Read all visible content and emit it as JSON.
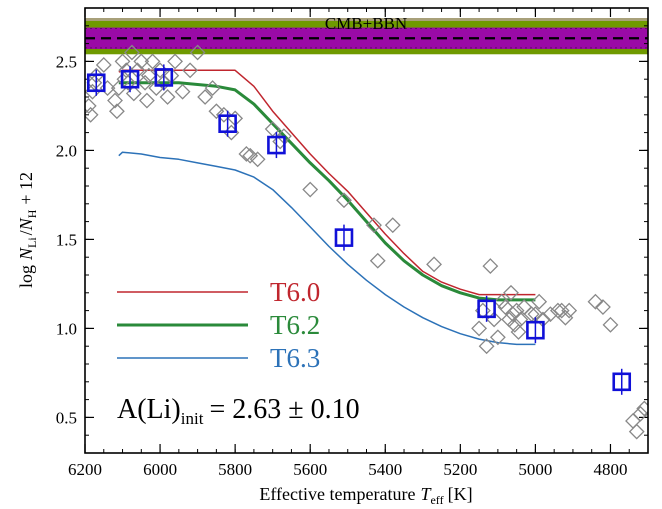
{
  "chart_data": {
    "type": "line",
    "xlabel_main": "Effective temperature",
    "xlabel_sym": "T",
    "xlabel_sub": "eff",
    "xlabel_unit": "[K]",
    "ylabel_log": "log",
    "ylabel_n": "N",
    "ylabel_li": "Li",
    "ylabel_h": "H",
    "ylabel_tail": "+ 12",
    "xlim": [
      6200,
      4700
    ],
    "ylim": [
      0.3,
      2.8
    ],
    "xticks": [
      6200,
      6000,
      5800,
      5600,
      5400,
      5200,
      5000,
      4800
    ],
    "yticks": [
      0.5,
      1.0,
      1.5,
      2.0,
      2.5
    ],
    "band": {
      "label": "CMB+BBN",
      "outer_range": [
        2.54,
        2.73
      ],
      "inner_range": [
        2.57,
        2.69
      ],
      "center": 2.63,
      "outer_color": "#6f9a00",
      "inner_color": "#9a0aa6",
      "top_line_color": "#a8a07a"
    },
    "annotation": {
      "main": "A(Li)",
      "sub": "init",
      "value": "= 2.63 ± 0.10"
    },
    "series": [
      {
        "name": "T6.0",
        "color": "#c0262e",
        "width": 1.5,
        "x": [
          6110,
          6100,
          6050,
          6000,
          5950,
          5900,
          5850,
          5800,
          5750,
          5700,
          5650,
          5600,
          5550,
          5500,
          5450,
          5400,
          5350,
          5300,
          5250,
          5200,
          5150,
          5100,
          5050,
          5000
        ],
        "y": [
          2.44,
          2.45,
          2.45,
          2.45,
          2.45,
          2.45,
          2.45,
          2.45,
          2.36,
          2.22,
          2.1,
          1.98,
          1.87,
          1.77,
          1.65,
          1.53,
          1.42,
          1.32,
          1.26,
          1.22,
          1.19,
          1.19,
          1.19,
          1.19
        ]
      },
      {
        "name": "T6.2",
        "color": "#2a8a3a",
        "width": 3,
        "x": [
          6110,
          6100,
          6050,
          6000,
          5950,
          5900,
          5850,
          5800,
          5750,
          5700,
          5650,
          5600,
          5550,
          5500,
          5450,
          5400,
          5350,
          5300,
          5250,
          5200,
          5150,
          5100,
          5050,
          5000
        ],
        "y": [
          2.38,
          2.38,
          2.38,
          2.38,
          2.38,
          2.37,
          2.36,
          2.34,
          2.26,
          2.15,
          2.04,
          1.93,
          1.83,
          1.72,
          1.6,
          1.48,
          1.38,
          1.3,
          1.24,
          1.2,
          1.17,
          1.16,
          1.16,
          1.16
        ]
      },
      {
        "name": "T6.3",
        "color": "#2c72b8",
        "width": 1.5,
        "x": [
          6110,
          6100,
          6050,
          6000,
          5950,
          5900,
          5850,
          5800,
          5750,
          5700,
          5650,
          5600,
          5550,
          5500,
          5450,
          5400,
          5350,
          5300,
          5250,
          5200,
          5150,
          5100,
          5050,
          5000
        ],
        "y": [
          1.97,
          1.99,
          1.98,
          1.96,
          1.95,
          1.93,
          1.91,
          1.89,
          1.85,
          1.78,
          1.68,
          1.57,
          1.46,
          1.36,
          1.27,
          1.19,
          1.12,
          1.06,
          1.01,
          0.97,
          0.94,
          0.92,
          0.91,
          0.91
        ]
      }
    ],
    "stars": {
      "color": "#888888",
      "x": [
        6190,
        6185,
        6180,
        6175,
        6170,
        6150,
        6140,
        6120,
        6115,
        6110,
        6100,
        6095,
        6090,
        6085,
        6075,
        6070,
        6060,
        6050,
        6040,
        6035,
        6030,
        6020,
        6010,
        6000,
        5990,
        5980,
        5970,
        5960,
        5940,
        5920,
        5900,
        5880,
        5860,
        5850,
        5830,
        5810,
        5800,
        5770,
        5760,
        5740,
        5700,
        5680,
        5670,
        5600,
        5510,
        5430,
        5420,
        5380,
        5270,
        5150,
        5140,
        5130,
        5120,
        5110,
        5100,
        5090,
        5080,
        5070,
        5065,
        5060,
        5055,
        5050,
        5045,
        5040,
        5030,
        5010,
        5000,
        4990,
        4980,
        4960,
        4940,
        4930,
        4920,
        4910,
        4840,
        4820,
        4800,
        4740,
        4730,
        4720,
        4710
      ],
      "y": [
        2.25,
        2.2,
        2.33,
        2.38,
        2.42,
        2.48,
        2.35,
        2.28,
        2.22,
        2.35,
        2.5,
        2.4,
        2.45,
        2.38,
        2.55,
        2.32,
        2.45,
        2.5,
        2.38,
        2.28,
        2.42,
        2.5,
        2.35,
        2.45,
        2.38,
        2.3,
        2.42,
        2.5,
        2.33,
        2.45,
        2.55,
        2.3,
        2.35,
        2.22,
        2.2,
        2.1,
        2.18,
        1.98,
        1.97,
        1.95,
        2.12,
        2.05,
        2.08,
        1.78,
        1.72,
        1.58,
        1.38,
        1.58,
        1.36,
        1.0,
        1.1,
        0.9,
        1.35,
        1.05,
        0.95,
        1.15,
        1.12,
        1.05,
        1.2,
        1.08,
        1.02,
        1.1,
        0.98,
        1.05,
        1.12,
        1.08,
        1.08,
        1.15,
        1.05,
        1.08,
        1.1,
        1.1,
        1.06,
        1.1,
        1.15,
        1.12,
        1.02,
        0.48,
        0.42,
        0.52,
        0.55
      ]
    },
    "squares": {
      "color": "#1010d8",
      "x": [
        6170,
        6080,
        5990,
        5820,
        5690,
        5510,
        5130,
        5000,
        4770
      ],
      "y": [
        2.38,
        2.4,
        2.41,
        2.15,
        2.03,
        1.51,
        1.11,
        0.99,
        0.7
      ]
    }
  }
}
